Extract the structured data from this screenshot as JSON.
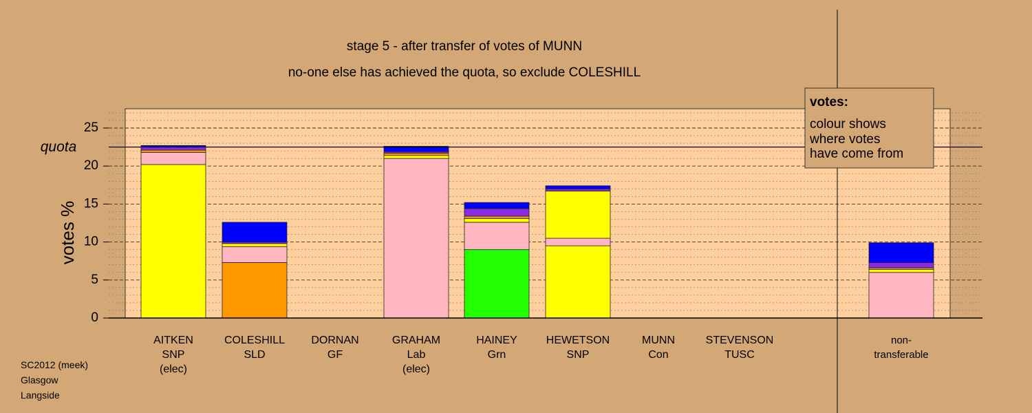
{
  "chart_data": {
    "type": "bar",
    "stacked": true,
    "title": "stage 5 - after transfer of votes of MUNN",
    "subtitle": "no-one else has achieved the quota, so exclude COLESHILL",
    "ylabel": "votes %",
    "ylim": [
      0,
      27.5
    ],
    "yticks": [
      0,
      5,
      10,
      15,
      20,
      25
    ],
    "quota": 22.5,
    "quota_label": "quota",
    "grid": "dashed horizontal lines",
    "categories": [
      {
        "name": "AITKEN",
        "party": "SNP",
        "note": "(elec)"
      },
      {
        "name": "COLESHILL",
        "party": "SLD",
        "note": ""
      },
      {
        "name": "DORNAN",
        "party": "GF",
        "note": ""
      },
      {
        "name": "GRAHAM",
        "party": "Lab",
        "note": "(elec)"
      },
      {
        "name": "HAINEY",
        "party": "Grn",
        "note": ""
      },
      {
        "name": "HEWETSON",
        "party": "SNP",
        "note": ""
      },
      {
        "name": "MUNN",
        "party": "Con",
        "note": ""
      },
      {
        "name": "STEVENSON",
        "party": "TUSC",
        "note": ""
      },
      {
        "name": "non-",
        "party": "transferable",
        "note": ""
      }
    ],
    "stacks": [
      [
        {
          "value": 20.2,
          "color": "#ffff00"
        },
        {
          "value": 1.6,
          "color": "#ffb6c1"
        },
        {
          "value": 0.3,
          "color": "#ff9900"
        },
        {
          "value": 0.4,
          "color": "#8a2be2"
        },
        {
          "value": 0.2,
          "color": "#0000ff"
        }
      ],
      [
        {
          "value": 7.3,
          "color": "#ff9900"
        },
        {
          "value": 2.1,
          "color": "#ffb6c1"
        },
        {
          "value": 0.4,
          "color": "#ffff00"
        },
        {
          "value": 0.2,
          "color": "#8a2be2"
        },
        {
          "value": 2.6,
          "color": "#0000ff"
        }
      ],
      [],
      [
        {
          "value": 21.0,
          "color": "#ffb6c1"
        },
        {
          "value": 0.4,
          "color": "#ffff00"
        },
        {
          "value": 0.3,
          "color": "#ff9900"
        },
        {
          "value": 0.2,
          "color": "#8a2be2"
        },
        {
          "value": 0.7,
          "color": "#0000ff"
        }
      ],
      [
        {
          "value": 9.0,
          "color": "#22ff00"
        },
        {
          "value": 3.6,
          "color": "#ffb6c1"
        },
        {
          "value": 0.5,
          "color": "#ffff00"
        },
        {
          "value": 0.3,
          "color": "#ff9900"
        },
        {
          "value": 1.0,
          "color": "#8a2be2"
        },
        {
          "value": 0.8,
          "color": "#0000ff"
        }
      ],
      [
        {
          "value": 9.5,
          "color": "#ffff00"
        },
        {
          "value": 1.0,
          "color": "#ffb6c1"
        },
        {
          "value": 6.2,
          "color": "#ffff00"
        },
        {
          "value": 0.3,
          "color": "#8a2be2"
        },
        {
          "value": 0.4,
          "color": "#0000ff"
        }
      ],
      [],
      [],
      [
        {
          "value": 6.0,
          "color": "#ffb6c1"
        },
        {
          "value": 0.4,
          "color": "#ffff00"
        },
        {
          "value": 0.2,
          "color": "#ff9900"
        },
        {
          "value": 0.7,
          "color": "#8a2be2"
        },
        {
          "value": 2.6,
          "color": "#0000ff"
        }
      ]
    ],
    "legend": {
      "title": "votes:",
      "lines": [
        "colour shows",
        "where votes",
        "have come from"
      ],
      "placement": "top-right"
    }
  },
  "footer": {
    "lines": [
      "SC2012 (meek)",
      "Glasgow",
      "Langside"
    ]
  }
}
